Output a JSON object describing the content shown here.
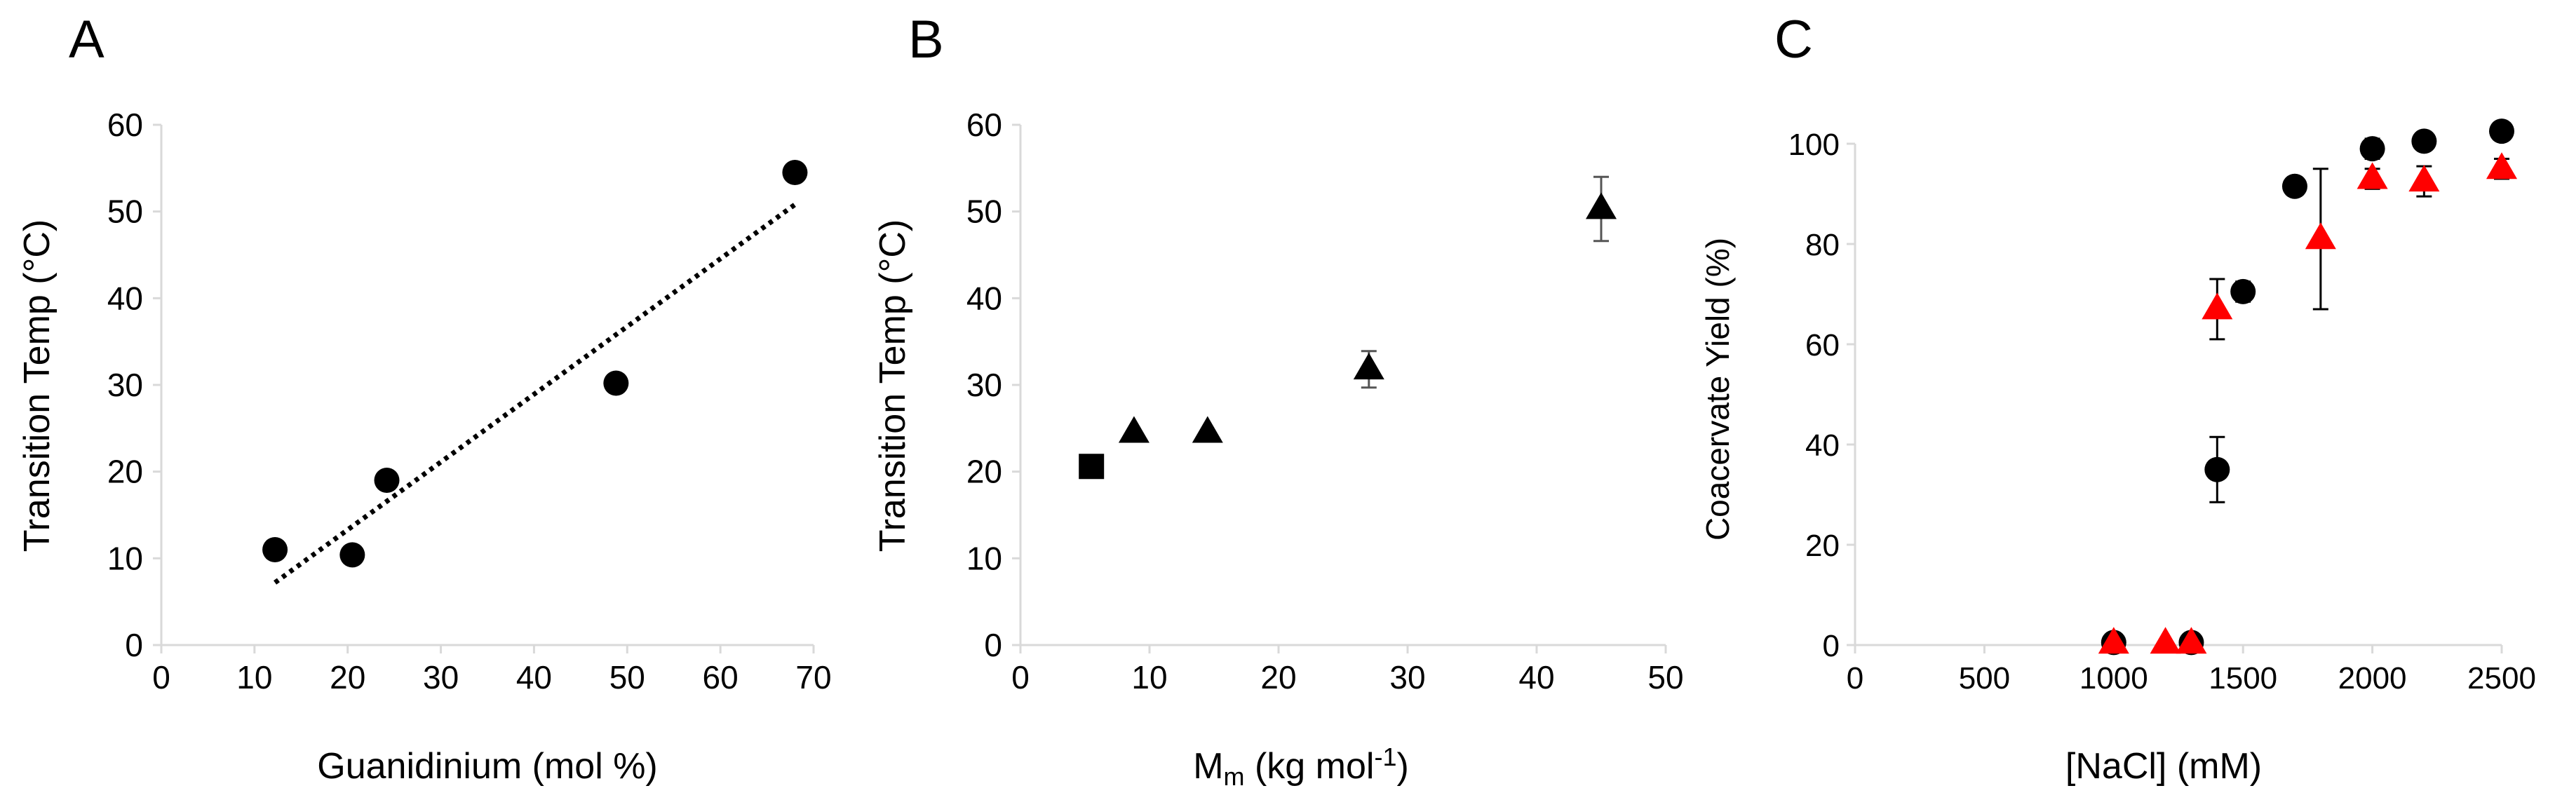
{
  "figure_panels": [
    "A",
    "B",
    "C"
  ],
  "chart_data": [
    {
      "panel": "A",
      "type": "scatter",
      "title": "",
      "xlabel": "Guanidinium (mol %)",
      "ylabel": "Transition Temp (°C)",
      "xlim": [
        0,
        70
      ],
      "ylim": [
        0,
        60
      ],
      "xticks": [
        0,
        10,
        20,
        30,
        40,
        50,
        60,
        70
      ],
      "yticks": [
        0,
        10,
        20,
        30,
        40,
        50,
        60
      ],
      "grid": false,
      "series": [
        {
          "name": "data",
          "marker": "circle",
          "color": "#000000",
          "points": [
            {
              "x": 12.2,
              "y": 11.0
            },
            {
              "x": 20.5,
              "y": 10.4
            },
            {
              "x": 24.2,
              "y": 19.0
            },
            {
              "x": 48.8,
              "y": 30.2
            },
            {
              "x": 68.0,
              "y": 54.5
            }
          ]
        }
      ],
      "trendline": {
        "type": "linear",
        "style": "dotted",
        "color": "#000000",
        "x_start": 12.2,
        "y_start": 7.2,
        "x_end": 68.0,
        "y_end": 50.8
      }
    },
    {
      "panel": "B",
      "type": "scatter",
      "title": "",
      "xlabel_main": "M",
      "xlabel_sub": "m",
      "xlabel_rest": " (kg mol",
      "xlabel_sup": "-1",
      "xlabel_close": ")",
      "ylabel": "Transition Temp (°C)",
      "xlim": [
        0,
        50
      ],
      "ylim": [
        0,
        60
      ],
      "xticks": [
        0,
        10,
        20,
        30,
        40,
        50
      ],
      "yticks": [
        0,
        10,
        20,
        30,
        40,
        50,
        60
      ],
      "grid": false,
      "series": [
        {
          "name": "square",
          "marker": "square",
          "color": "#000000",
          "points": [
            {
              "x": 5.5,
              "y": 20.6,
              "err": 0
            }
          ]
        },
        {
          "name": "triangle",
          "marker": "triangle",
          "color": "#000000",
          "points": [
            {
              "x": 8.8,
              "y": 24.5,
              "err": 0
            },
            {
              "x": 14.5,
              "y": 24.5,
              "err": 0
            },
            {
              "x": 27.0,
              "y": 31.8,
              "err": 2.1
            },
            {
              "x": 45.0,
              "y": 50.3,
              "err": 3.7
            }
          ]
        }
      ]
    },
    {
      "panel": "C",
      "type": "scatter",
      "title": "",
      "xlabel": "[NaCl] (mM)",
      "ylabel": "Coacervate Yield (%)",
      "xlim": [
        0,
        2500
      ],
      "ylim": [
        0,
        100
      ],
      "xticks": [
        0,
        500,
        1000,
        1500,
        2000,
        2500
      ],
      "yticks": [
        0,
        20,
        40,
        60,
        80,
        100
      ],
      "grid": false,
      "series": [
        {
          "name": "black circles",
          "marker": "circle",
          "color": "#000000",
          "points": [
            {
              "x": 1000,
              "y": 0.5,
              "err": 0
            },
            {
              "x": 1300,
              "y": 0.5,
              "err": 0
            },
            {
              "x": 1400,
              "y": 35.0,
              "err": 6.5
            },
            {
              "x": 1500,
              "y": 70.5,
              "err": 2.0
            },
            {
              "x": 1700,
              "y": 91.5,
              "err": 1.5
            },
            {
              "x": 2000,
              "y": 99.0,
              "err": 2.0
            },
            {
              "x": 2200,
              "y": 100.5,
              "err": 1.5
            },
            {
              "x": 2500,
              "y": 102.5,
              "err": 0
            }
          ]
        },
        {
          "name": "red triangles",
          "marker": "triangle",
          "color": "#ff0000",
          "points": [
            {
              "x": 1000,
              "y": 0.3,
              "err": 0
            },
            {
              "x": 1200,
              "y": 0.3,
              "err": 0
            },
            {
              "x": 1300,
              "y": 0.3,
              "err": 0
            },
            {
              "x": 1400,
              "y": 67.0,
              "err": 6.0
            },
            {
              "x": 1800,
              "y": 81.0,
              "err": 14.0
            },
            {
              "x": 2000,
              "y": 93.0,
              "err": 2.0
            },
            {
              "x": 2200,
              "y": 92.5,
              "err": 3.0
            },
            {
              "x": 2500,
              "y": 95.0,
              "err": 2.0
            }
          ]
        }
      ]
    }
  ]
}
